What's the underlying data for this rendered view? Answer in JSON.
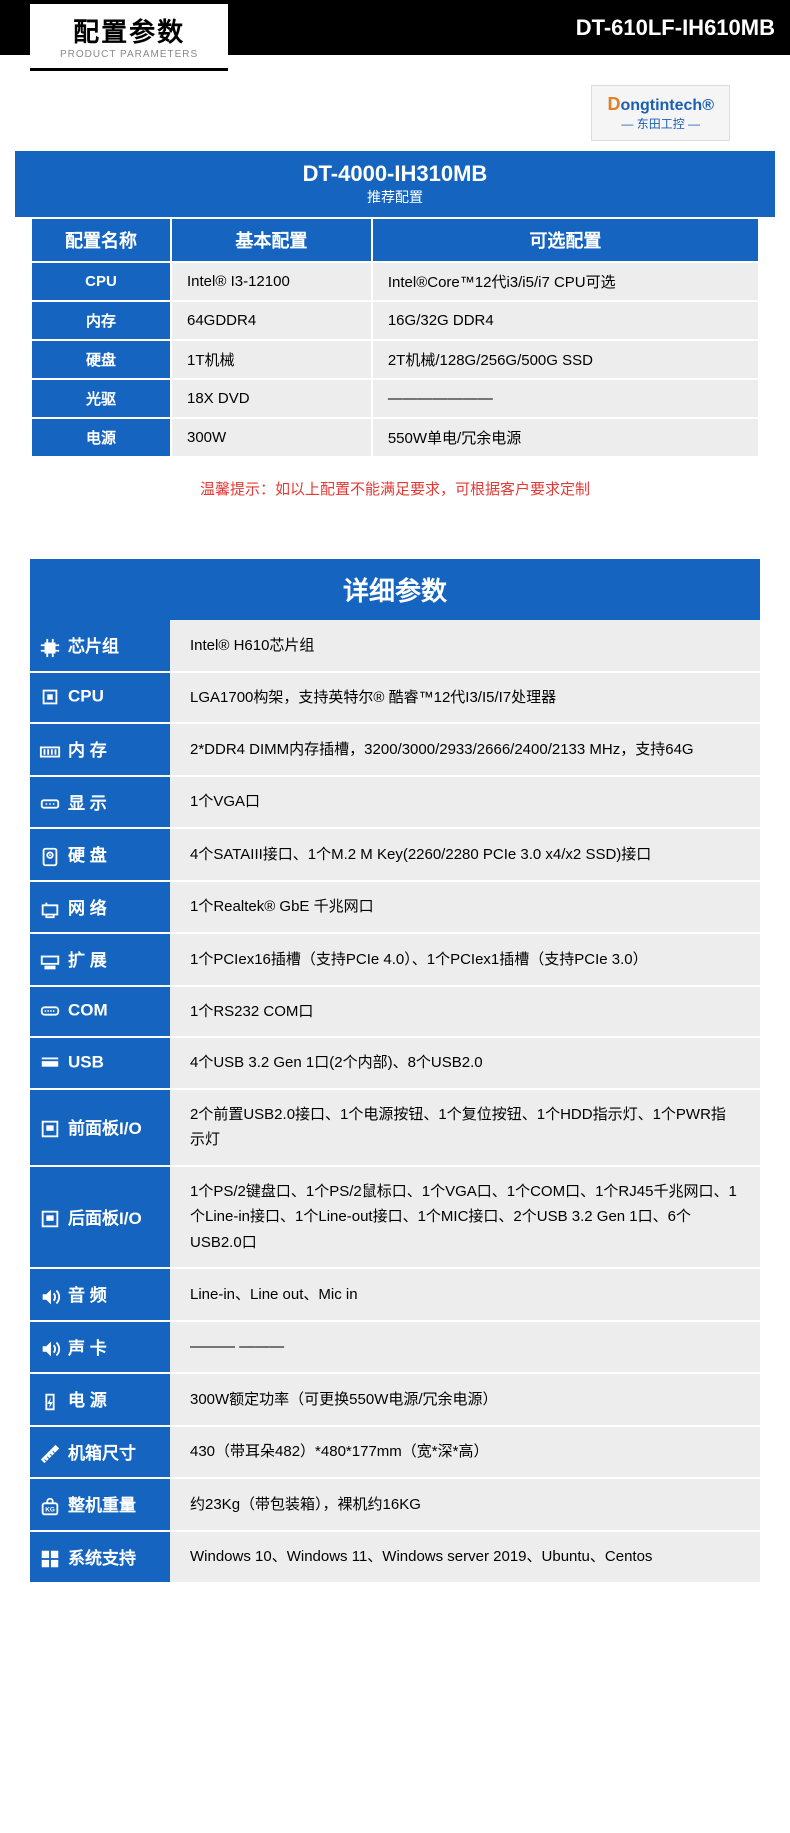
{
  "header": {
    "title_cn": "配置参数",
    "title_en": "PRODUCT PARAMETERS",
    "model": "DT-610LF-IH610MB"
  },
  "logo": {
    "prefix": "D",
    "name": "ongtintech",
    "reg": "®",
    "sub_cn": "— 东田工控 —"
  },
  "blueBar": {
    "title": "DT-4000-IH310MB",
    "sub": "推荐配置"
  },
  "cfg": {
    "headers": [
      "配置名称",
      "基本配置",
      "可选配置"
    ],
    "rows": [
      {
        "label": "CPU",
        "basic": "Intel® I3-12100",
        "opt": "Intel®Core™12代i3/i5/i7 CPU可选"
      },
      {
        "label": "内存",
        "basic": "64GDDR4",
        "opt": "16G/32G DDR4"
      },
      {
        "label": "硬盘",
        "basic": "1T机械",
        "opt": "2T机械/128G/256G/500G SSD"
      },
      {
        "label": "光驱",
        "basic": "18X DVD",
        "opt": "———————"
      },
      {
        "label": "电源",
        "basic": "300W",
        "opt": "550W单电/冗余电源"
      }
    ]
  },
  "tip": "温馨提示：如以上配置不能满足要求，可根据客户要求定制",
  "detail": {
    "title": "详细参数",
    "rows": [
      {
        "icon": "chip",
        "label": "芯片组",
        "val": "Intel® H610芯片组"
      },
      {
        "icon": "cpu",
        "label": "CPU",
        "val": "LGA1700构架，支持英特尔® 酷睿™12代I3/I5/I7处理器"
      },
      {
        "icon": "ram",
        "label": "内 存",
        "val": "2*DDR4 DIMM内存插槽，3200/3000/2933/2666/2400/2133 MHz，支持64G"
      },
      {
        "icon": "vga",
        "label": "显 示",
        "val": "1个VGA口"
      },
      {
        "icon": "hdd",
        "label": "硬 盘",
        "val": "4个SATAIII接口、1个M.2 M Key(2260/2280 PCIe 3.0 x4/x2 SSD)接口"
      },
      {
        "icon": "net",
        "label": "网 络",
        "val": "1个Realtek® GbE 千兆网口"
      },
      {
        "icon": "exp",
        "label": "扩 展",
        "val": "1个PCIex16插槽（支持PCIe 4.0）、1个PCIex1插槽（支持PCIe 3.0）"
      },
      {
        "icon": "com",
        "label": "COM",
        "val": "1个RS232 COM口"
      },
      {
        "icon": "usb",
        "label": "USB",
        "val": "4个USB 3.2 Gen 1口(2个内部)、8个USB2.0"
      },
      {
        "icon": "port",
        "label": "前面板I/O",
        "val": "2个前置USB2.0接口、1个电源按钮、1个复位按钮、1个HDD指示灯、1个PWR指示灯"
      },
      {
        "icon": "port",
        "label": "后面板I/O",
        "val": "1个PS/2键盘口、1个PS/2鼠标口、1个VGA口、1个COM口、1个RJ45千兆网口、1个Line-in接口、1个Line-out接口、1个MIC接口、2个USB 3.2 Gen 1口、6个USB2.0口"
      },
      {
        "icon": "audio",
        "label": "音 频",
        "val": "Line-in、Line out、Mic in"
      },
      {
        "icon": "audio",
        "label": "声 卡",
        "val": "——— ———"
      },
      {
        "icon": "power",
        "label": "电 源",
        "val": "300W额定功率（可更换550W电源/冗余电源）"
      },
      {
        "icon": "size",
        "label": "机箱尺寸",
        "val": "430（带耳朵482）*480*177mm（宽*深*高）"
      },
      {
        "icon": "weight",
        "label": "整机重量",
        "val": "约23Kg（带包装箱），裸机约16KG"
      },
      {
        "icon": "os",
        "label": "系统支持",
        "val": "Windows 10、Windows 11、Windows server 2019、Ubuntu、Centos"
      }
    ]
  },
  "colors": {
    "blue": "#1565c0",
    "grey": "#ededed",
    "red": "#e53935"
  }
}
